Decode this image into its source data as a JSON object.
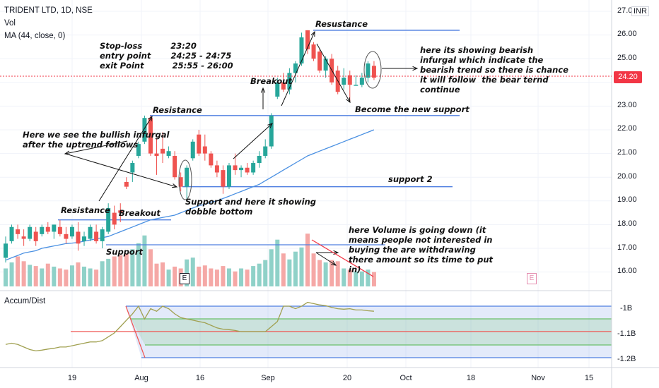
{
  "header": {
    "symbol": "TRIDENT LTD, 1D, NSE",
    "vol_label": "Vol",
    "ma_label": "MA (44, close, 0)"
  },
  "price_axis": {
    "currency": "INR",
    "current_price": "24.20",
    "labels": [
      "27.00",
      "26.00",
      "25.00",
      "24.00",
      "23.00",
      "22.00",
      "21.00",
      "20.00",
      "19.00",
      "18.00",
      "17.00",
      "16.00"
    ]
  },
  "indicator": {
    "name": "Accum/Dist",
    "labels": [
      "-1B",
      "-1.1B",
      "-1.2B"
    ]
  },
  "time_axis": {
    "labels": [
      "19",
      "Aug",
      "16",
      "Sep",
      "20",
      "Oct",
      "18",
      "Nov",
      "15"
    ]
  },
  "earnings_badge": "E",
  "colors": {
    "up": "#26a69a",
    "down": "#ef5350",
    "ma": "#4a90e2",
    "accum": "#a0a050",
    "band": "#4f7fe0"
  },
  "annotations": {
    "stoploss": "Stop-loss          23:20",
    "entry": "entry point       24:25 - 24:75",
    "exit": "exit Point          25:55 - 26:00",
    "resustance": "Resustance",
    "resistance_mid": "Resistance",
    "resistance_left": "Resistance",
    "breakout_left": "Breakout",
    "breakout_mid": "Breakout",
    "support_left": "Support",
    "new_support": "Become the new support",
    "support2": "support 2",
    "dobble_bottom": "Support and here it showing\ndobble bottom",
    "bullish": "Here we see the bullish infurgal\nafter the uptrend follows",
    "bearish": "here its showing bearish\ninfurgal which indicate the\nbearish trend so there is chance\nit will follow  the bear ternd\ncontinue",
    "volume": "here Volume is going down (it\nmeans people not interested in\nbuying the are withdrawing\nthere amount so its time to put\nin)"
  },
  "chart_data": {
    "type": "candlestick",
    "title": "TRIDENT LTD, 1D, NSE",
    "ylim": [
      15.5,
      27.3
    ],
    "candles": [
      {
        "o": 16.6,
        "h": 17.5,
        "l": 16.4,
        "c": 17.2
      },
      {
        "o": 17.3,
        "h": 18.0,
        "l": 17.2,
        "c": 17.9
      },
      {
        "o": 17.8,
        "h": 18.0,
        "l": 17.4,
        "c": 17.6
      },
      {
        "o": 17.5,
        "h": 17.8,
        "l": 17.1,
        "c": 17.4
      },
      {
        "o": 17.4,
        "h": 18.0,
        "l": 17.3,
        "c": 17.9
      },
      {
        "o": 17.7,
        "h": 17.9,
        "l": 17.1,
        "c": 17.3
      },
      {
        "o": 17.6,
        "h": 18.0,
        "l": 17.5,
        "c": 17.9
      },
      {
        "o": 17.9,
        "h": 18.1,
        "l": 17.6,
        "c": 17.7
      },
      {
        "o": 17.7,
        "h": 18.0,
        "l": 17.4,
        "c": 18.0
      },
      {
        "o": 17.9,
        "h": 18.2,
        "l": 17.5,
        "c": 17.6
      },
      {
        "o": 17.6,
        "h": 17.9,
        "l": 17.2,
        "c": 17.4
      },
      {
        "o": 17.5,
        "h": 18.0,
        "l": 17.4,
        "c": 17.9
      },
      {
        "o": 17.7,
        "h": 18.1,
        "l": 16.9,
        "c": 17.2
      },
      {
        "o": 17.3,
        "h": 17.7,
        "l": 17.1,
        "c": 17.5
      },
      {
        "o": 17.4,
        "h": 18.0,
        "l": 17.3,
        "c": 17.9
      },
      {
        "o": 17.7,
        "h": 18.0,
        "l": 17.2,
        "c": 17.3
      },
      {
        "o": 17.3,
        "h": 17.9,
        "l": 17.0,
        "c": 17.8
      },
      {
        "o": 17.7,
        "h": 18.9,
        "l": 17.6,
        "c": 18.7
      },
      {
        "o": 18.5,
        "h": 18.8,
        "l": 17.8,
        "c": 18.0
      },
      {
        "o": 18.6,
        "h": 18.9,
        "l": 18.1,
        "c": 18.5
      },
      {
        "o": 19.8,
        "h": 20.0,
        "l": 19.5,
        "c": 19.6
      },
      {
        "o": 20.2,
        "h": 20.7,
        "l": 19.8,
        "c": 20.6
      },
      {
        "o": 20.9,
        "h": 21.5,
        "l": 20.8,
        "c": 21.4
      },
      {
        "o": 21.5,
        "h": 22.6,
        "l": 21.4,
        "c": 22.5
      },
      {
        "o": 22.5,
        "h": 22.6,
        "l": 20.9,
        "c": 21.0
      },
      {
        "o": 21.0,
        "h": 21.6,
        "l": 20.1,
        "c": 20.9
      },
      {
        "o": 21.2,
        "h": 21.9,
        "l": 20.6,
        "c": 21.0
      },
      {
        "o": 20.9,
        "h": 21.3,
        "l": 20.8,
        "c": 21.1
      },
      {
        "o": 20.9,
        "h": 21.1,
        "l": 19.9,
        "c": 20.0
      },
      {
        "o": 20.0,
        "h": 20.2,
        "l": 19.4,
        "c": 19.6
      },
      {
        "o": 19.6,
        "h": 20.5,
        "l": 19.0,
        "c": 20.4
      },
      {
        "o": 20.8,
        "h": 21.6,
        "l": 20.7,
        "c": 21.5
      },
      {
        "o": 21.8,
        "h": 22.0,
        "l": 20.9,
        "c": 21.0
      },
      {
        "o": 21.3,
        "h": 21.8,
        "l": 20.7,
        "c": 21.0
      },
      {
        "o": 21.0,
        "h": 21.1,
        "l": 20.4,
        "c": 20.5
      },
      {
        "o": 20.5,
        "h": 20.7,
        "l": 20.0,
        "c": 20.2
      },
      {
        "o": 20.3,
        "h": 20.5,
        "l": 19.3,
        "c": 19.6
      },
      {
        "o": 19.6,
        "h": 20.6,
        "l": 19.5,
        "c": 20.5
      },
      {
        "o": 20.5,
        "h": 21.0,
        "l": 20.1,
        "c": 20.3
      },
      {
        "o": 20.3,
        "h": 20.5,
        "l": 20.0,
        "c": 20.4
      },
      {
        "o": 20.4,
        "h": 20.6,
        "l": 20.1,
        "c": 20.2
      },
      {
        "o": 20.2,
        "h": 20.7,
        "l": 20.1,
        "c": 20.6
      },
      {
        "o": 20.6,
        "h": 21.1,
        "l": 20.4,
        "c": 20.9
      },
      {
        "o": 20.9,
        "h": 21.6,
        "l": 20.8,
        "c": 21.3
      },
      {
        "o": 21.3,
        "h": 22.7,
        "l": 21.2,
        "c": 22.6
      },
      {
        "o": 23.4,
        "h": 24.2,
        "l": 23.3,
        "c": 24.0
      },
      {
        "o": 24.0,
        "h": 24.4,
        "l": 23.6,
        "c": 23.7
      },
      {
        "o": 23.7,
        "h": 24.6,
        "l": 23.5,
        "c": 24.4
      },
      {
        "o": 24.4,
        "h": 24.9,
        "l": 24.0,
        "c": 24.8
      },
      {
        "o": 24.8,
        "h": 26.1,
        "l": 24.7,
        "c": 25.9
      },
      {
        "o": 26.2,
        "h": 26.2,
        "l": 25.2,
        "c": 25.4
      },
      {
        "o": 25.6,
        "h": 25.7,
        "l": 24.9,
        "c": 25.0
      },
      {
        "o": 25.3,
        "h": 25.4,
        "l": 24.4,
        "c": 24.5
      },
      {
        "o": 24.5,
        "h": 25.1,
        "l": 24.2,
        "c": 25.0
      },
      {
        "o": 25.0,
        "h": 25.2,
        "l": 23.9,
        "c": 24.0
      },
      {
        "o": 24.5,
        "h": 24.7,
        "l": 23.5,
        "c": 23.6
      },
      {
        "o": 23.9,
        "h": 24.6,
        "l": 23.7,
        "c": 24.2
      },
      {
        "o": 24.3,
        "h": 24.5,
        "l": 23.2,
        "c": 23.9
      },
      {
        "o": 23.9,
        "h": 24.3,
        "l": 23.9,
        "c": 23.9
      },
      {
        "o": 23.9,
        "h": 24.4,
        "l": 23.8,
        "c": 24.2
      },
      {
        "o": 24.2,
        "h": 24.9,
        "l": 24.0,
        "c": 24.8
      },
      {
        "o": 24.7,
        "h": 24.9,
        "l": 24.1,
        "c": 24.2
      }
    ],
    "volume": [
      0.3,
      0.4,
      0.5,
      0.42,
      0.36,
      0.34,
      0.3,
      0.38,
      0.33,
      0.3,
      0.28,
      0.35,
      0.4,
      0.33,
      0.3,
      0.28,
      0.42,
      0.46,
      0.5,
      0.52,
      0.55,
      0.62,
      0.72,
      0.85,
      0.62,
      0.38,
      0.4,
      0.28,
      0.33,
      0.3,
      0.45,
      0.48,
      0.33,
      0.35,
      0.3,
      0.28,
      0.34,
      0.3,
      0.25,
      0.3,
      0.28,
      0.34,
      0.38,
      0.44,
      0.62,
      0.78,
      0.55,
      0.45,
      0.58,
      0.65,
      0.88,
      0.55,
      0.44,
      0.4,
      0.44,
      0.42,
      0.3,
      0.28,
      0.25,
      0.25,
      0.28,
      0.24
    ],
    "ma": [
      16.5,
      16.6,
      16.7,
      16.8,
      16.85,
      16.9,
      17.0,
      17.05,
      17.1,
      17.15,
      17.2,
      17.22,
      17.25,
      17.3,
      17.35,
      17.4,
      17.45,
      17.5,
      17.6,
      17.7,
      17.8,
      17.9,
      18.0,
      18.1,
      18.2,
      18.25,
      18.3,
      18.35,
      18.4,
      18.5,
      18.6,
      18.7,
      18.8,
      18.85,
      18.95,
      19.0,
      19.1,
      19.2,
      19.3,
      19.4,
      19.5,
      19.6,
      19.7,
      19.85,
      20.0,
      20.15,
      20.3,
      20.45,
      20.6,
      20.75,
      20.9,
      21.0,
      21.1,
      21.2,
      21.3,
      21.4,
      21.5,
      21.6,
      21.7,
      21.8,
      21.9,
      22.0
    ],
    "levels": [
      {
        "name": "Resustance",
        "price": 26.2
      },
      {
        "name": "Become the new support",
        "price": 22.6
      },
      {
        "name": "support 2",
        "price": 19.6
      },
      {
        "name": "Resistance",
        "price": 18.2
      }
    ],
    "accum_dist": [
      -1.15,
      -1.145,
      -1.15,
      -1.16,
      -1.17,
      -1.175,
      -1.172,
      -1.168,
      -1.165,
      -1.16,
      -1.16,
      -1.155,
      -1.15,
      -1.145,
      -1.14,
      -1.14,
      -1.135,
      -1.12,
      -1.105,
      -1.08,
      -1.055,
      -1.03,
      -1.0,
      -1.05,
      -1.01,
      -1.02,
      -1.0,
      -1.01,
      -1.03,
      -1.045,
      -1.05,
      -1.055,
      -1.06,
      -1.065,
      -1.075,
      -1.085,
      -1.09,
      -1.092,
      -1.095,
      -1.1,
      -1.1,
      -1.1,
      -1.1,
      -1.1,
      -1.08,
      -1.06,
      -1.0,
      -1.0,
      -1.01,
      -1.0,
      -0.985,
      -0.99,
      -0.995,
      -0.998,
      -1.005,
      -1.01,
      -1.012,
      -1.01,
      -1.015,
      -1.015,
      -1.018,
      -1.02
    ]
  }
}
